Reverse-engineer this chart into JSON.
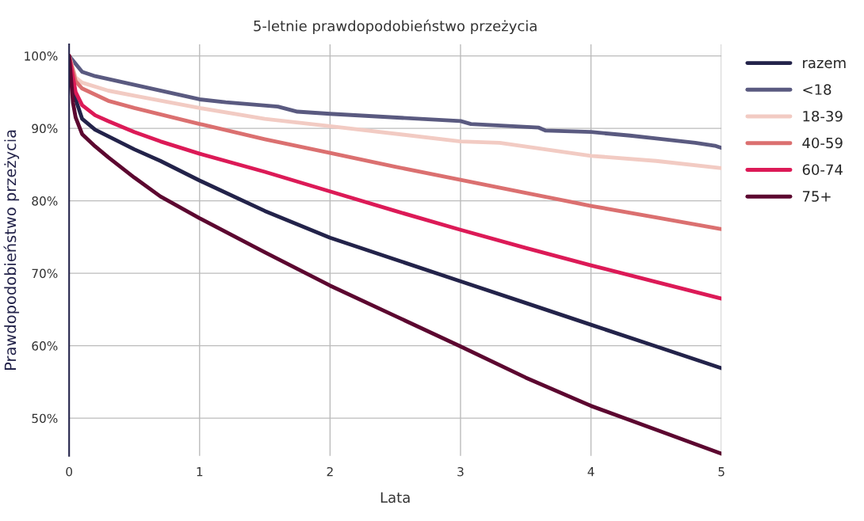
{
  "chart_data": {
    "type": "line",
    "title": "5-letnie prawdopodobieństwo przeżycia",
    "xlabel": "Lata",
    "ylabel": "Prawdopodobieństwo przeżycia",
    "xlim": [
      0,
      5
    ],
    "ylim": [
      44.8,
      101.6
    ],
    "xticks": [
      0,
      1,
      2,
      3,
      4,
      5
    ],
    "yticks": [
      {
        "value": 50,
        "label": "50%"
      },
      {
        "value": 60,
        "label": "60%"
      },
      {
        "value": 70,
        "label": "70%"
      },
      {
        "value": 80,
        "label": "80%"
      },
      {
        "value": 90,
        "label": "90%"
      },
      {
        "value": 100,
        "label": "100%"
      }
    ],
    "grid": true,
    "legend": "top right",
    "marker": "none",
    "line_style": "solid",
    "series": [
      {
        "name": "razem",
        "color": "#23234a",
        "x": [
          0,
          0.05,
          0.1,
          0.2,
          0.3,
          0.5,
          0.7,
          1,
          1.5,
          2,
          2.5,
          3,
          3.5,
          4,
          4.5,
          5
        ],
        "values": [
          100,
          94,
          91.3,
          89.8,
          88.9,
          87.1,
          85.5,
          82.8,
          78.6,
          74.9,
          71.9,
          68.9,
          65.9,
          62.9,
          59.9,
          56.9
        ]
      },
      {
        "name": "<18",
        "color": "#5a5a80",
        "x": [
          0,
          0.1,
          0.2,
          0.5,
          1,
          1.2,
          1.6,
          1.75,
          2,
          3,
          3.08,
          3.6,
          3.65,
          4,
          4.3,
          4.5,
          4.8,
          4.95,
          5
        ],
        "values": [
          100,
          97.8,
          97.2,
          96,
          94,
          93.6,
          93,
          92.3,
          92,
          91,
          90.6,
          90.1,
          89.7,
          89.5,
          89,
          88.6,
          88,
          87.6,
          87.3
        ]
      },
      {
        "name": "18-39",
        "color": "#f2cbc3",
        "x": [
          0,
          0.05,
          0.1,
          0.3,
          0.5,
          1,
          1.5,
          2,
          3,
          3.3,
          4,
          4.5,
          5
        ],
        "values": [
          100,
          97,
          96.3,
          95.2,
          94.5,
          92.8,
          91.3,
          90.3,
          88.2,
          88,
          86.2,
          85.5,
          84.5
        ]
      },
      {
        "name": "40-59",
        "color": "#db7070",
        "x": [
          0,
          0.05,
          0.1,
          0.3,
          0.5,
          1,
          1.5,
          2,
          2.5,
          3,
          3.5,
          4,
          4.5,
          5
        ],
        "values": [
          100,
          96.5,
          95.5,
          93.8,
          92.8,
          90.6,
          88.5,
          86.6,
          84.7,
          82.9,
          81.1,
          79.3,
          77.7,
          76.1
        ]
      },
      {
        "name": "60-74",
        "color": "#dc1a57",
        "x": [
          0,
          0.05,
          0.1,
          0.2,
          0.3,
          0.5,
          0.7,
          1,
          1.5,
          2,
          2.5,
          3,
          3.5,
          4,
          4.5,
          5
        ],
        "values": [
          100,
          95,
          93.2,
          91.8,
          91,
          89.5,
          88.2,
          86.5,
          84,
          81.3,
          78.6,
          76,
          73.5,
          71.1,
          68.8,
          66.5
        ]
      },
      {
        "name": "75+",
        "color": "#5c0730",
        "x": [
          0,
          0.03,
          0.05,
          0.1,
          0.2,
          0.3,
          0.5,
          0.7,
          1,
          1.5,
          2,
          2.5,
          3,
          3.5,
          4,
          4.5,
          5
        ],
        "values": [
          100,
          93.5,
          91.5,
          89.2,
          87.5,
          86,
          83.2,
          80.6,
          77.6,
          72.9,
          68.3,
          64.1,
          59.9,
          55.6,
          51.7,
          48.4,
          45.1
        ]
      }
    ]
  }
}
